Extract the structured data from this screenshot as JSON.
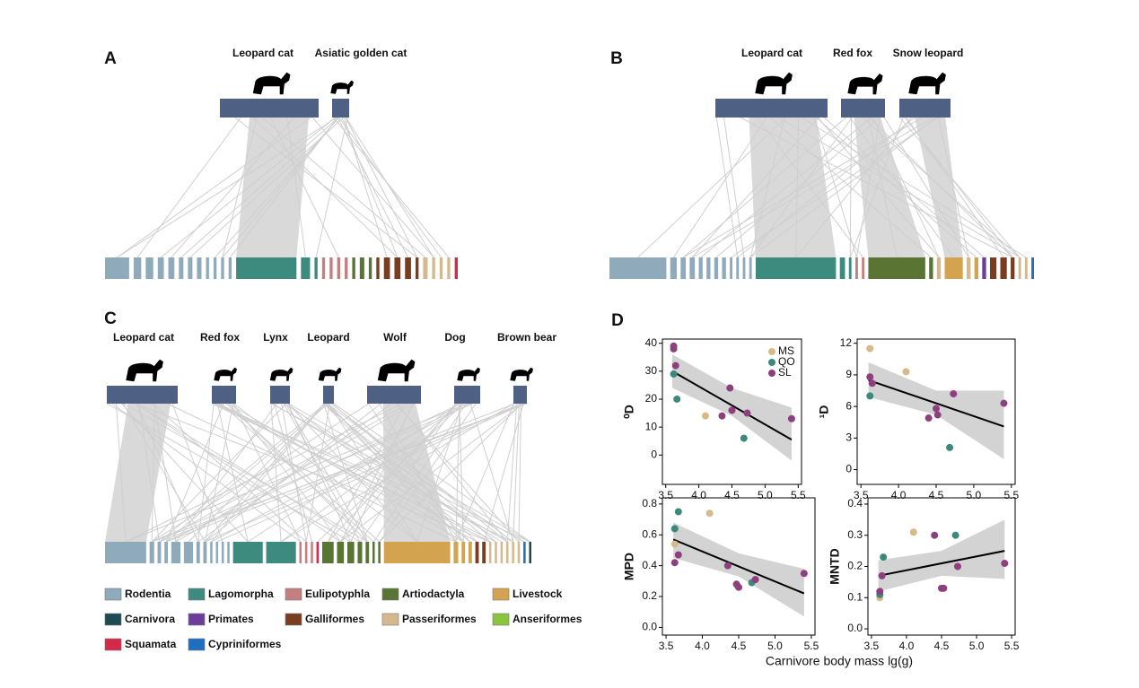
{
  "panels": [
    {
      "label": "A",
      "predators": [
        "Leopard cat",
        "Asiatic golden cat"
      ]
    },
    {
      "label": "B",
      "predators": [
        "Leopard cat",
        "Red fox",
        "Snow leopard"
      ]
    },
    {
      "label": "C",
      "predators": [
        "Leopard cat",
        "Red fox",
        "Lynx",
        "Leopard",
        "Wolf",
        "Dog",
        "Brown bear"
      ]
    }
  ],
  "legend": {
    "items": [
      {
        "name": "Rodentia",
        "color": "#8eaabb"
      },
      {
        "name": "Lagomorpha",
        "color": "#3d8a7e"
      },
      {
        "name": "Eulipotyphla",
        "color": "#c47f80"
      },
      {
        "name": "Artiodactyla",
        "color": "#5a7434"
      },
      {
        "name": "Livestock",
        "color": "#d4a34f"
      },
      {
        "name": "Carnivora",
        "color": "#1c4b52"
      },
      {
        "name": "Primates",
        "color": "#6b3f99"
      },
      {
        "name": "Galliformes",
        "color": "#7a3d20"
      },
      {
        "name": "Passeriformes",
        "color": "#d5b98e"
      },
      {
        "name": "Anseriformes",
        "color": "#8bc53f"
      },
      {
        "name": "Squamata",
        "color": "#d42a4a"
      },
      {
        "name": "Cypriniformes",
        "color": "#1e6fbf"
      }
    ]
  },
  "panel_d": {
    "label": "D",
    "x_label": "Carnivore body mass lg(g)"
  },
  "chart_data": [
    {
      "type": "scatter",
      "y_label": "⁰D",
      "legend": "top-right",
      "xlim": [
        3.45,
        5.55
      ],
      "xticks": [
        3.5,
        {
          "value": 4,
          "label": "4.0"
        },
        4.5,
        {
          "value": 5,
          "label": "5.0"
        },
        5.5
      ],
      "ylim": [
        -10.5,
        41.5
      ],
      "yticks": [
        0,
        10,
        20,
        30,
        40
      ],
      "series": [
        {
          "name": "MS",
          "color": "#d7b98a",
          "x": [
            4.1
          ],
          "values": [
            14
          ]
        },
        {
          "name": "QO",
          "color": "#3a8a7c",
          "x": [
            3.62,
            3.67,
            4.68
          ],
          "values": [
            29,
            20,
            6
          ]
        },
        {
          "name": "SL",
          "color": "#8e3f7e",
          "x": [
            3.62,
            3.62,
            3.65,
            4.35,
            4.47,
            4.5,
            4.73,
            5.4
          ],
          "values": [
            39,
            38,
            32,
            14,
            24,
            16,
            15,
            13
          ]
        }
      ],
      "trend": {
        "x": [
          3.6,
          5.4
        ],
        "values": [
          30,
          5.5
        ]
      },
      "band": {
        "x": [
          3.6,
          4.5,
          5.4
        ],
        "lower": [
          24,
          14,
          -2
        ],
        "upper": [
          36,
          24,
          17
        ]
      }
    },
    {
      "type": "scatter",
      "y_label": "¹D",
      "xlim": [
        3.45,
        5.55
      ],
      "xticks": [
        3.5,
        {
          "value": 4,
          "label": "4.0"
        },
        4.5,
        {
          "value": 5,
          "label": "5.0"
        },
        5.5
      ],
      "ylim": [
        -1.4,
        12.4
      ],
      "yticks": [
        0,
        3,
        6,
        9,
        12
      ],
      "series": [
        {
          "color": "#d7b98a",
          "x": [
            3.62,
            4.1
          ],
          "values": [
            11.5,
            9.3
          ]
        },
        {
          "color": "#3a8a7c",
          "x": [
            3.62,
            4.68
          ],
          "values": [
            7,
            2.1
          ]
        },
        {
          "color": "#8e3f7e",
          "x": [
            3.62,
            3.65,
            4.4,
            4.5,
            4.52,
            4.73,
            5.4
          ],
          "values": [
            8.8,
            8.2,
            4.9,
            5.8,
            5.2,
            7.2,
            6.3
          ]
        }
      ],
      "trend": {
        "x": [
          3.6,
          5.4
        ],
        "values": [
          8.5,
          4.1
        ]
      },
      "band": {
        "x": [
          3.6,
          4.5,
          5.4
        ],
        "lower": [
          6.9,
          5.2,
          1
        ],
        "upper": [
          10.2,
          7.5,
          7.5
        ]
      }
    },
    {
      "type": "scatter",
      "y_label": "MPD",
      "xlim": [
        3.45,
        5.55
      ],
      "xticks": [
        3.5,
        {
          "value": 4,
          "label": "4.0"
        },
        4.5,
        {
          "value": 5,
          "label": "5.0"
        },
        5.5
      ],
      "ylim": [
        -0.05,
        0.84
      ],
      "yticks": [
        {
          "value": 0,
          "label": "0.0"
        },
        0.2,
        0.4,
        0.6,
        0.8
      ],
      "series": [
        {
          "color": "#d7b98a",
          "x": [
            3.62,
            4.1
          ],
          "values": [
            0.54,
            0.74
          ]
        },
        {
          "color": "#3a8a7c",
          "x": [
            3.62,
            3.67,
            4.68
          ],
          "values": [
            0.64,
            0.75,
            0.29
          ]
        },
        {
          "color": "#8e3f7e",
          "x": [
            3.62,
            3.67,
            4.35,
            4.47,
            4.5,
            4.73,
            5.4
          ],
          "values": [
            0.42,
            0.47,
            0.4,
            0.28,
            0.26,
            0.31,
            0.35
          ]
        }
      ],
      "trend": {
        "x": [
          3.6,
          5.4
        ],
        "values": [
          0.57,
          0.22
        ]
      },
      "band": {
        "x": [
          3.6,
          4.5,
          5.4
        ],
        "lower": [
          0.45,
          0.33,
          0.07
        ],
        "upper": [
          0.68,
          0.48,
          0.38
        ]
      }
    },
    {
      "type": "scatter",
      "y_label": "MNTD",
      "xlim": [
        3.45,
        5.55
      ],
      "xticks": [
        3.5,
        {
          "value": 4,
          "label": "4.0"
        },
        4.5,
        {
          "value": 5,
          "label": "5.0"
        },
        5.5
      ],
      "ylim": [
        -0.02,
        0.42
      ],
      "yticks": [
        {
          "value": 0,
          "label": "0.0"
        },
        0.1,
        0.2,
        0.3,
        0.4
      ],
      "series": [
        {
          "color": "#d7b98a",
          "x": [
            3.62,
            4.1
          ],
          "values": [
            0.1,
            0.31
          ]
        },
        {
          "color": "#3a8a7c",
          "x": [
            3.62,
            3.67,
            4.7
          ],
          "values": [
            0.11,
            0.23,
            0.3
          ]
        },
        {
          "color": "#8e3f7e",
          "x": [
            3.62,
            3.65,
            4.4,
            4.5,
            4.53,
            4.73,
            5.4
          ],
          "values": [
            0.12,
            0.17,
            0.3,
            0.13,
            0.13,
            0.2,
            0.21
          ]
        }
      ],
      "trend": {
        "x": [
          3.6,
          5.4
        ],
        "values": [
          0.17,
          0.25
        ]
      },
      "band": {
        "x": [
          3.6,
          4.5,
          5.4
        ],
        "lower": [
          0.12,
          0.17,
          0.16
        ],
        "upper": [
          0.22,
          0.25,
          0.35
        ]
      }
    }
  ]
}
